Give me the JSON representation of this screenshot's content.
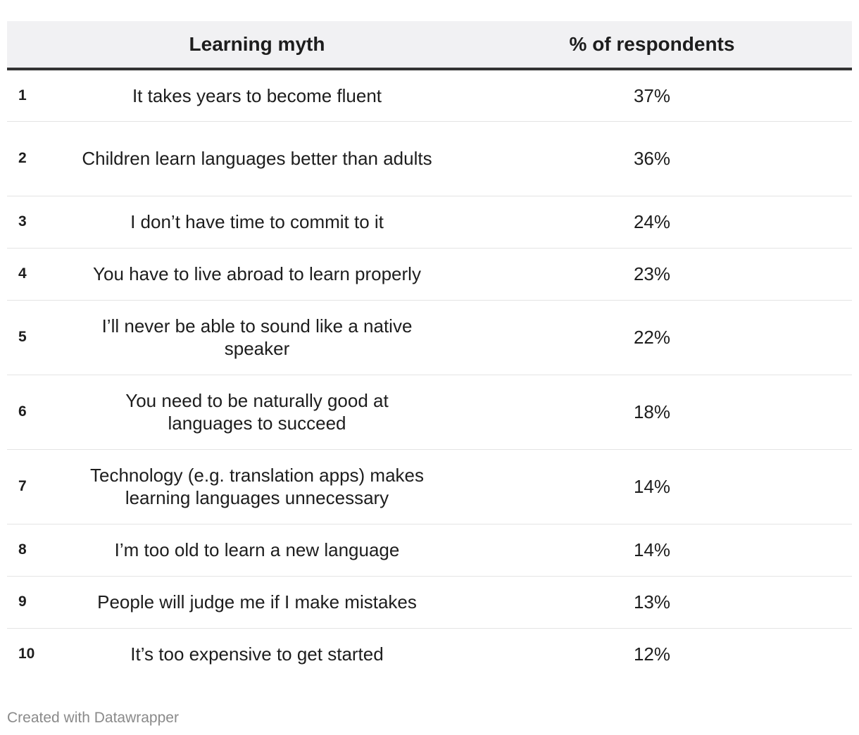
{
  "chart_data": {
    "type": "table",
    "columns": [
      "",
      "Learning myth",
      "% of respondents"
    ],
    "rows": [
      {
        "rank": "1",
        "myth": "It takes years to become fluent",
        "percent": "37%",
        "value": 37
      },
      {
        "rank": "2",
        "myth": "Children learn languages better than adults",
        "percent": "36%",
        "value": 36
      },
      {
        "rank": "3",
        "myth": "I don’t have time to commit to it",
        "percent": "24%",
        "value": 24
      },
      {
        "rank": "4",
        "myth": "You have to live abroad to learn properly",
        "percent": "23%",
        "value": 23
      },
      {
        "rank": "5",
        "myth": "I’ll never be able to sound like a native speaker",
        "percent": "22%",
        "value": 22
      },
      {
        "rank": "6",
        "myth": "You need to be naturally good at languages to succeed",
        "percent": "18%",
        "value": 18
      },
      {
        "rank": "7",
        "myth": "Technology (e.g. translation apps) makes learning languages unnecessary",
        "percent": "14%",
        "value": 14
      },
      {
        "rank": "8",
        "myth": "I’m too old to learn a new language",
        "percent": "14%",
        "value": 14
      },
      {
        "rank": "9",
        "myth": "People will judge me if I make mistakes",
        "percent": "13%",
        "value": 13
      },
      {
        "rank": "10",
        "myth": "It’s too expensive to get started",
        "percent": "12%",
        "value": 12
      }
    ]
  },
  "footer": {
    "credit": "Created with Datawrapper"
  }
}
